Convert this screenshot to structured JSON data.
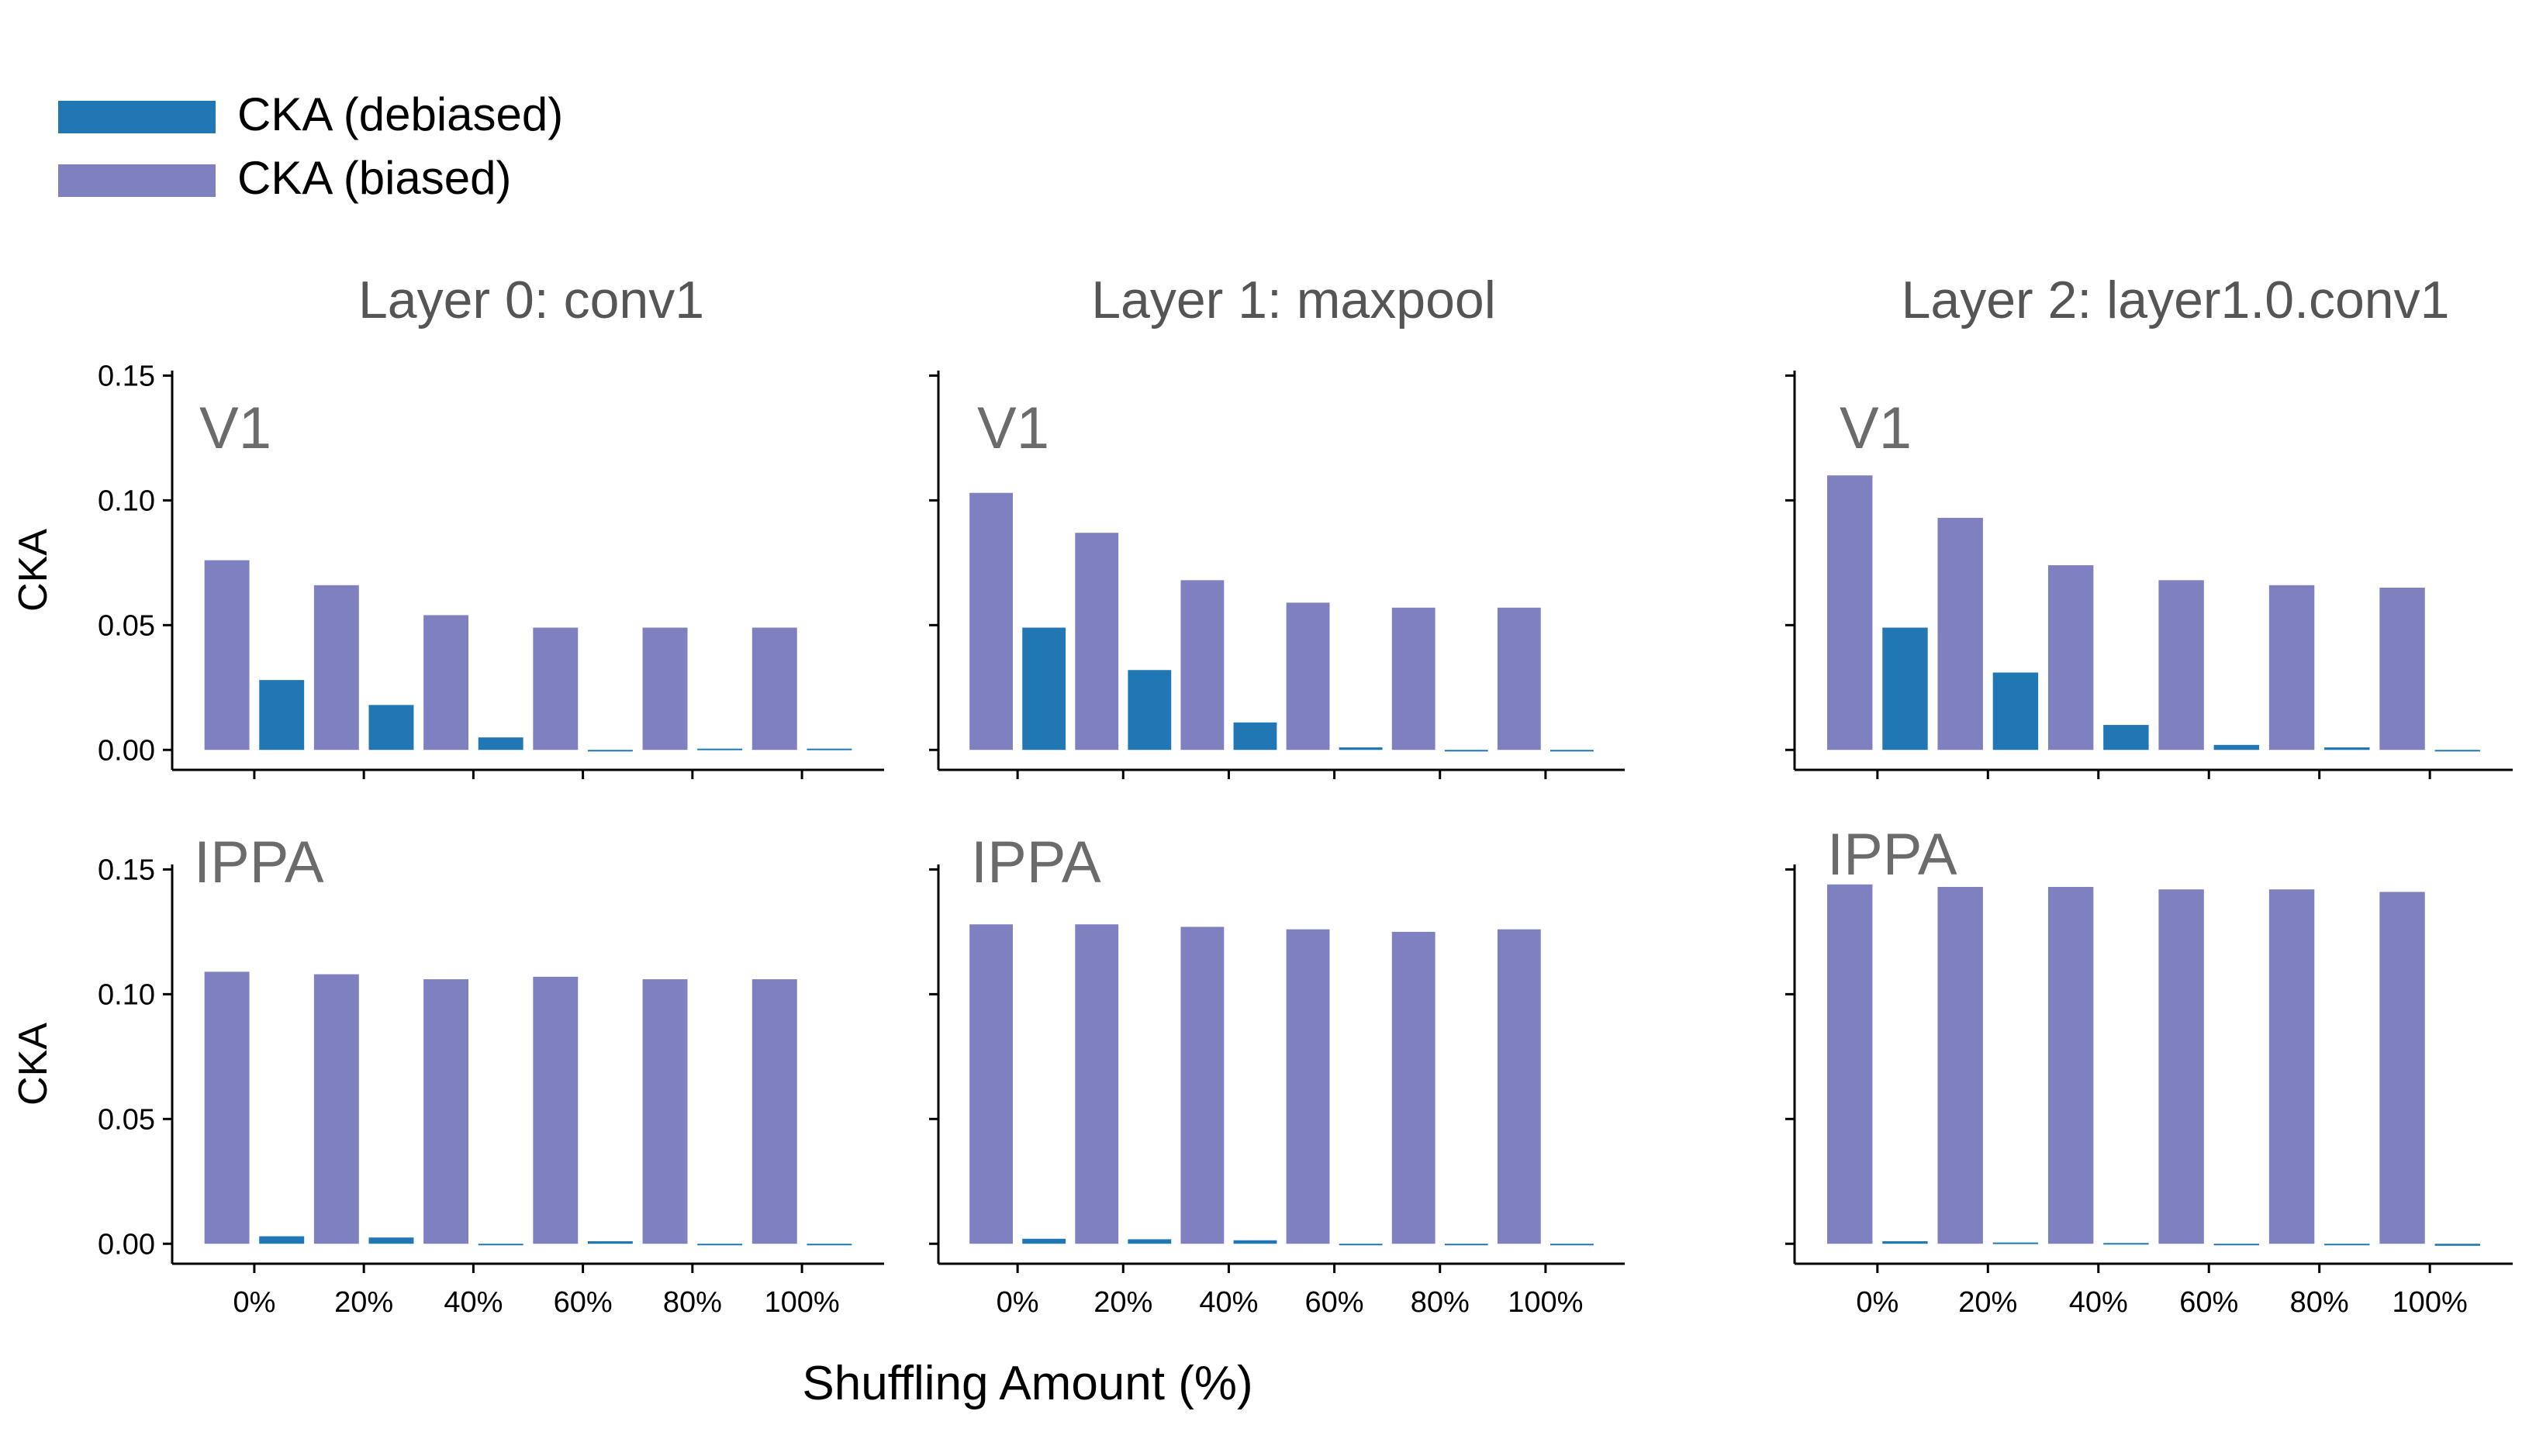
{
  "figure": {
    "xlabel": "Shuffling Amount (%)",
    "ylabel": "CKA",
    "legend": [
      {
        "label": "CKA (debiased)",
        "color": "#2077b4"
      },
      {
        "label": "CKA (biased)",
        "color": "#7f80bf"
      }
    ],
    "legend_position": "top-left",
    "column_titles": [
      "Layer 0: conv1",
      "Layer 1: maxpool",
      "Layer 2: layer1.0.conv1"
    ],
    "row_labels": [
      "V1",
      "IPPA"
    ]
  },
  "chart_data": [
    {
      "type": "bar",
      "title": "Layer 0: conv1",
      "panel_label": "V1",
      "ylabel": "CKA",
      "xlabel": "Shuffling Amount (%)",
      "categories": [
        "0%",
        "20%",
        "40%",
        "60%",
        "80%",
        "100%"
      ],
      "ylim": [
        -0.008,
        0.152
      ],
      "yticks": [
        "0.00",
        "0.05",
        "0.10",
        "0.15"
      ],
      "show_ytick_labels": true,
      "show_xtick_labels": false,
      "grid": false,
      "series": [
        {
          "name": "CKA (biased)",
          "color": "#7f80bf",
          "values": [
            0.076,
            0.066,
            0.054,
            0.049,
            0.049,
            0.049
          ]
        },
        {
          "name": "CKA (debiased)",
          "color": "#2077b4",
          "values": [
            0.028,
            0.018,
            0.005,
            -0.0003,
            0.0005,
            0.0005
          ]
        }
      ]
    },
    {
      "type": "bar",
      "title": "Layer 1: maxpool",
      "panel_label": "V1",
      "ylabel": "",
      "xlabel": "",
      "categories": [
        "0%",
        "20%",
        "40%",
        "60%",
        "80%",
        "100%"
      ],
      "ylim": [
        -0.008,
        0.152
      ],
      "yticks": [
        "0.00",
        "0.05",
        "0.10",
        "0.15"
      ],
      "show_ytick_labels": false,
      "show_xtick_labels": false,
      "grid": false,
      "series": [
        {
          "name": "CKA (biased)",
          "color": "#7f80bf",
          "values": [
            0.103,
            0.087,
            0.068,
            0.059,
            0.057,
            0.057
          ]
        },
        {
          "name": "CKA (debiased)",
          "color": "#2077b4",
          "values": [
            0.049,
            0.032,
            0.011,
            0.001,
            -0.0005,
            -0.0003
          ]
        }
      ]
    },
    {
      "type": "bar",
      "title": "Layer 2: layer1.0.conv1",
      "panel_label": "V1",
      "ylabel": "",
      "xlabel": "",
      "categories": [
        "0%",
        "20%",
        "40%",
        "60%",
        "80%",
        "100%"
      ],
      "ylim": [
        -0.008,
        0.152
      ],
      "yticks": [
        "0.00",
        "0.05",
        "0.10",
        "0.15"
      ],
      "show_ytick_labels": false,
      "show_xtick_labels": false,
      "grid": false,
      "series": [
        {
          "name": "CKA (biased)",
          "color": "#7f80bf",
          "values": [
            0.11,
            0.093,
            0.074,
            0.068,
            0.066,
            0.065
          ]
        },
        {
          "name": "CKA (debiased)",
          "color": "#2077b4",
          "values": [
            0.049,
            0.031,
            0.01,
            0.002,
            0.001,
            -0.0002
          ]
        }
      ]
    },
    {
      "type": "bar",
      "title": "",
      "panel_label": "IPPA",
      "ylabel": "CKA",
      "xlabel": "",
      "categories": [
        "0%",
        "20%",
        "40%",
        "60%",
        "80%",
        "100%"
      ],
      "ylim": [
        -0.008,
        0.152
      ],
      "yticks": [
        "0.00",
        "0.05",
        "0.10",
        "0.15"
      ],
      "show_ytick_labels": true,
      "show_xtick_labels": true,
      "grid": false,
      "series": [
        {
          "name": "CKA (biased)",
          "color": "#7f80bf",
          "values": [
            0.109,
            0.108,
            0.106,
            0.107,
            0.106,
            0.106
          ]
        },
        {
          "name": "CKA (debiased)",
          "color": "#2077b4",
          "values": [
            0.003,
            0.0025,
            -0.0003,
            0.001,
            -0.0002,
            -0.0003
          ]
        }
      ]
    },
    {
      "type": "bar",
      "title": "",
      "panel_label": "IPPA",
      "ylabel": "",
      "xlabel": "",
      "categories": [
        "0%",
        "20%",
        "40%",
        "60%",
        "80%",
        "100%"
      ],
      "ylim": [
        -0.008,
        0.152
      ],
      "yticks": [
        "0.00",
        "0.05",
        "0.10",
        "0.15"
      ],
      "show_ytick_labels": false,
      "show_xtick_labels": true,
      "grid": false,
      "series": [
        {
          "name": "CKA (biased)",
          "color": "#7f80bf",
          "values": [
            0.128,
            0.128,
            0.127,
            0.126,
            0.125,
            0.126
          ]
        },
        {
          "name": "CKA (debiased)",
          "color": "#2077b4",
          "values": [
            0.002,
            0.0018,
            0.0014,
            -0.0003,
            -0.0005,
            -0.0003
          ]
        }
      ]
    },
    {
      "type": "bar",
      "title": "",
      "panel_label": "IPPA",
      "ylabel": "",
      "xlabel": "",
      "categories": [
        "0%",
        "20%",
        "40%",
        "60%",
        "80%",
        "100%"
      ],
      "ylim": [
        -0.008,
        0.152
      ],
      "yticks": [
        "0.00",
        "0.05",
        "0.10",
        "0.15"
      ],
      "show_ytick_labels": false,
      "show_xtick_labels": true,
      "grid": false,
      "series": [
        {
          "name": "CKA (biased)",
          "color": "#7f80bf",
          "values": [
            0.144,
            0.143,
            0.143,
            0.142,
            0.142,
            0.141
          ]
        },
        {
          "name": "CKA (debiased)",
          "color": "#2077b4",
          "values": [
            0.001,
            0.0005,
            0.0003,
            -0.0005,
            -0.0003,
            -0.0008
          ]
        }
      ]
    }
  ]
}
